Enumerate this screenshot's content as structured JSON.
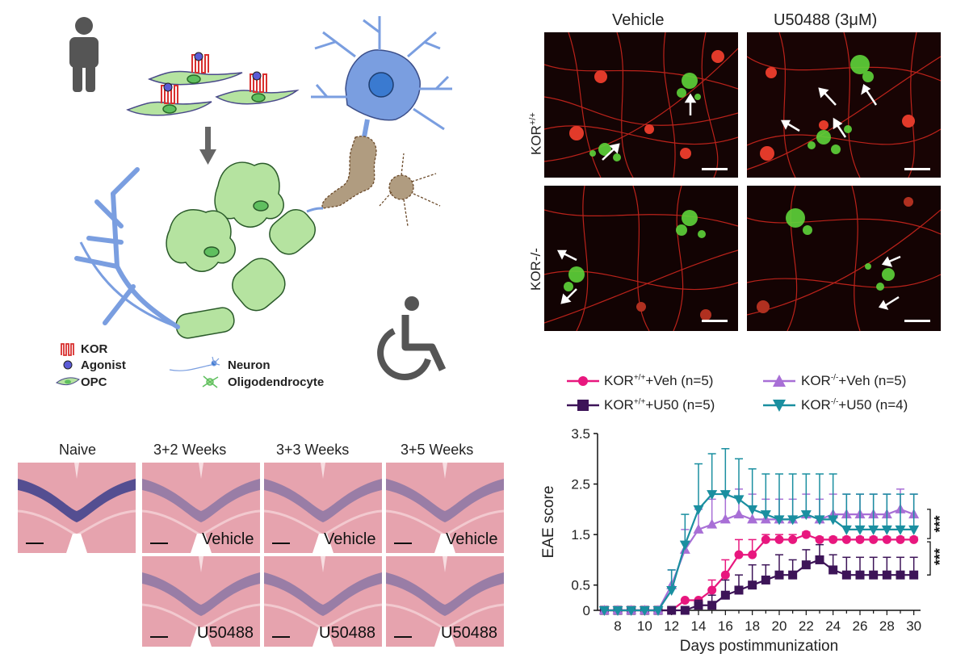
{
  "schematic": {
    "legend": {
      "kor": "KOR",
      "agonist": "Agonist",
      "opc": "OPC",
      "neuron": "Neuron",
      "oligodendrocyte": "Oligodendrocyte"
    },
    "icons": [
      "person-icon",
      "wheelchair-icon",
      "arrow-down-icon"
    ],
    "colors": {
      "cell_green": "#b5e3a0",
      "neuron_blue": "#7a9ee0",
      "receptor_red": "#d8302f",
      "agonist_purple": "#5b5bd6",
      "degenerating_tan": "#b09c80"
    }
  },
  "micrographs": {
    "col_vehicle": "Vehicle",
    "col_u50": "U50488 (3",
    "col_u50_mu": "μ",
    "col_u50_tail": "M)",
    "row_wt_base": "KOR",
    "row_wt_sup": "+/+",
    "row_ko": "KOR-/-"
  },
  "histology": {
    "col_naive": "Naive",
    "col_2w": "3+2 Weeks",
    "col_3w": "3+3 Weeks",
    "col_5w": "3+5 Weeks",
    "vehicle": "Vehicle",
    "u50488": "U50488"
  },
  "chart_data": {
    "type": "line",
    "xlabel": "Days postimmunization",
    "ylabel": "EAE score",
    "xlim": [
      6.5,
      30.5
    ],
    "ylim": [
      0,
      3.5
    ],
    "xticks": [
      8,
      10,
      12,
      14,
      16,
      18,
      20,
      22,
      24,
      26,
      28,
      30
    ],
    "yticks": [
      0,
      0.5,
      1.5,
      2.5,
      3.5
    ],
    "ytick_labels": [
      "0",
      "0.5",
      "1.5",
      "2.5",
      "3.5"
    ],
    "x": [
      7,
      8,
      9,
      10,
      11,
      12,
      13,
      14,
      15,
      16,
      17,
      18,
      19,
      20,
      21,
      22,
      23,
      24,
      25,
      26,
      27,
      28,
      29,
      30
    ],
    "series": [
      {
        "name": "KOR+/++Veh (n=5)",
        "name_base": "KOR",
        "name_sup": "+/+",
        "name_tail": "+Veh (n=5)",
        "color": "#e8177e",
        "marker": "circle",
        "values": [
          0,
          0,
          0,
          0,
          0,
          0,
          0.2,
          0.2,
          0.4,
          0.7,
          1.1,
          1.1,
          1.4,
          1.4,
          1.4,
          1.5,
          1.4,
          1.4,
          1.4,
          1.4,
          1.4,
          1.4,
          1.4,
          1.4
        ],
        "err": [
          0,
          0,
          0,
          0,
          0,
          0,
          0,
          0,
          0.2,
          0.3,
          0.3,
          0.3,
          0.1,
          0.1,
          0.1,
          0.05,
          0.05,
          0.05,
          0.05,
          0.05,
          0.05,
          0.05,
          0.05,
          0.05
        ]
      },
      {
        "name": "KOR+/++U50 (n=5)",
        "name_base": "KOR",
        "name_sup": "+/+",
        "name_tail": "+U50 (n=5)",
        "color": "#3d1458",
        "marker": "square",
        "values": [
          0,
          0,
          0,
          0,
          0,
          0,
          0,
          0.1,
          0.1,
          0.3,
          0.4,
          0.5,
          0.6,
          0.7,
          0.7,
          0.9,
          1.0,
          0.8,
          0.7,
          0.7,
          0.7,
          0.7,
          0.7,
          0.7
        ],
        "err": [
          0,
          0,
          0,
          0,
          0,
          0,
          0,
          0.1,
          0.2,
          0.3,
          0.3,
          0.4,
          0.3,
          0.4,
          0.3,
          0.3,
          0.3,
          0.3,
          0.35,
          0.35,
          0.35,
          0.35,
          0.35,
          0.35
        ]
      },
      {
        "name": "KOR-/-+Veh (n=5)",
        "name_base": "KOR",
        "name_sup": "-/-",
        "name_tail": "+Veh (n=5)",
        "color": "#a86fd6",
        "marker": "triangle-up",
        "values": [
          0,
          0,
          0,
          0,
          0,
          0.5,
          1.2,
          1.6,
          1.7,
          1.8,
          1.9,
          1.8,
          1.8,
          1.8,
          1.8,
          1.9,
          1.8,
          1.9,
          1.9,
          1.9,
          1.9,
          1.9,
          2.0,
          1.9
        ],
        "err": [
          0,
          0,
          0,
          0,
          0,
          0.3,
          0.4,
          0.4,
          0.5,
          0.5,
          0.5,
          0.5,
          0.4,
          0.4,
          0.4,
          0.4,
          0.4,
          0.4,
          0.4,
          0.4,
          0.4,
          0.4,
          0.4,
          0.4
        ]
      },
      {
        "name": "KOR-/-+U50 (n=4)",
        "name_base": "KOR",
        "name_sup": "-/-",
        "name_tail": "+U50 (n=4)",
        "color": "#1a8fa0",
        "marker": "triangle-down",
        "values": [
          0,
          0,
          0,
          0,
          0,
          0.4,
          1.3,
          2.0,
          2.3,
          2.3,
          2.2,
          2.0,
          1.9,
          1.8,
          1.8,
          1.9,
          1.8,
          1.8,
          1.6,
          1.6,
          1.6,
          1.6,
          1.6,
          1.6
        ],
        "err": [
          0,
          0,
          0,
          0,
          0,
          0.4,
          0.6,
          0.9,
          0.8,
          0.9,
          0.8,
          0.8,
          0.8,
          0.9,
          0.9,
          0.8,
          0.9,
          0.9,
          0.7,
          0.7,
          0.7,
          0.7,
          0.7,
          0.7
        ]
      }
    ],
    "significance": [
      "***",
      "***"
    ]
  }
}
